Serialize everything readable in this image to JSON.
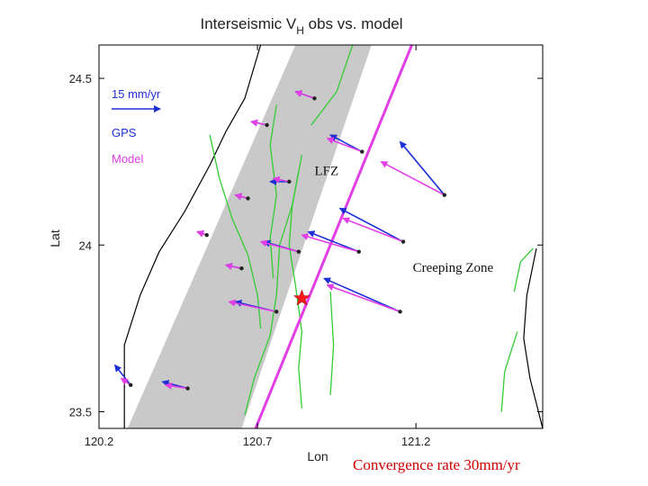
{
  "chart_data": {
    "type": "scatter",
    "title": "Interseismic V",
    "title_subscript": "H",
    "title_suffix": " obs vs. model",
    "xlabel": "Lon",
    "ylabel": "Lat",
    "xlim": [
      120.2,
      121.6
    ],
    "ylim": [
      23.45,
      24.6
    ],
    "xticks": [
      {
        "value": 120.2,
        "label": "120.2"
      },
      {
        "value": 120.7,
        "label": "120.7"
      },
      {
        "value": 121.2,
        "label": "121.2"
      }
    ],
    "yticks": [
      {
        "value": 23.5,
        "label": "23.5"
      },
      {
        "value": 24.0,
        "label": "24"
      },
      {
        "value": 24.5,
        "label": "24.5"
      }
    ],
    "legend": {
      "placement": "top-left",
      "scale_label": "15 mm/yr",
      "gps_label": "GPS",
      "model_label": "Model"
    },
    "colors": {
      "gps": "#1f2fd6",
      "model": "#e23ee6",
      "fault": "#e23ee6",
      "band": "#c9c9c9",
      "faults_green": "#33cc33",
      "coast": "#000000",
      "epicenter": "#ff1a1a"
    },
    "annotations": [
      {
        "text": "LFZ",
        "x": 120.88,
        "y": 24.21
      },
      {
        "text": "Creeping Zone",
        "x": 121.19,
        "y": 23.92
      }
    ],
    "footer": "Convergence rate 30mm/yr",
    "epicenter": {
      "x": 120.84,
      "y": 23.84
    },
    "fault_line": [
      [
        120.69,
        23.44
      ],
      [
        121.2,
        24.63
      ]
    ],
    "band": [
      [
        120.29,
        23.45
      ],
      [
        120.65,
        23.45
      ],
      [
        121.06,
        24.6
      ],
      [
        120.82,
        24.6
      ]
    ],
    "stations": [
      {
        "x": 120.88,
        "y": 24.44,
        "gps": [
          -0.06,
          0.02
        ],
        "model": [
          -0.06,
          0.02
        ]
      },
      {
        "x": 120.73,
        "y": 24.36,
        "gps": [
          -0.05,
          0.01
        ],
        "model": [
          -0.05,
          0.01
        ]
      },
      {
        "x": 121.03,
        "y": 24.28,
        "gps": [
          -0.1,
          0.05
        ],
        "model": [
          -0.11,
          0.04
        ]
      },
      {
        "x": 121.29,
        "y": 24.15,
        "gps": [
          -0.14,
          0.16
        ],
        "model": [
          -0.2,
          0.1
        ]
      },
      {
        "x": 120.8,
        "y": 24.19,
        "gps": [
          -0.06,
          0.0
        ],
        "model": [
          -0.05,
          0.01
        ]
      },
      {
        "x": 120.67,
        "y": 24.14,
        "gps": [
          -0.04,
          0.01
        ],
        "model": [
          -0.04,
          0.01
        ]
      },
      {
        "x": 121.16,
        "y": 24.01,
        "gps": [
          -0.2,
          0.1
        ],
        "model": [
          -0.19,
          0.07
        ]
      },
      {
        "x": 121.02,
        "y": 23.98,
        "gps": [
          -0.16,
          0.06
        ],
        "model": [
          -0.18,
          0.05
        ]
      },
      {
        "x": 120.83,
        "y": 23.98,
        "gps": [
          -0.11,
          0.03
        ],
        "model": [
          -0.12,
          0.03
        ]
      },
      {
        "x": 120.54,
        "y": 24.03,
        "gps": [
          -0.03,
          0.01
        ],
        "model": [
          -0.03,
          0.01
        ]
      },
      {
        "x": 120.65,
        "y": 23.93,
        "gps": [
          -0.05,
          0.01
        ],
        "model": [
          -0.05,
          0.01
        ]
      },
      {
        "x": 121.15,
        "y": 23.8,
        "gps": [
          -0.24,
          0.1
        ],
        "model": [
          -0.23,
          0.08
        ]
      },
      {
        "x": 120.76,
        "y": 23.8,
        "gps": [
          -0.13,
          0.03
        ],
        "model": [
          -0.15,
          0.03
        ]
      },
      {
        "x": 120.48,
        "y": 23.57,
        "gps": [
          -0.08,
          0.02
        ],
        "model": [
          -0.07,
          0.01
        ]
      },
      {
        "x": 120.3,
        "y": 23.58,
        "gps": [
          -0.05,
          0.06
        ],
        "model": [
          -0.03,
          0.02
        ]
      }
    ],
    "coastline": [
      [
        120.28,
        23.45
      ],
      [
        120.28,
        23.7
      ],
      [
        120.33,
        23.85
      ],
      [
        120.39,
        23.98
      ],
      [
        120.47,
        24.1
      ],
      [
        120.55,
        24.24
      ],
      [
        120.6,
        24.34
      ],
      [
        120.66,
        24.44
      ],
      [
        120.71,
        24.6
      ]
    ],
    "east_coast": [
      [
        121.6,
        23.45
      ],
      [
        121.56,
        23.6
      ],
      [
        121.54,
        23.72
      ],
      [
        121.55,
        23.85
      ],
      [
        121.58,
        23.99
      ]
    ],
    "green_faults": [
      [
        [
          120.71,
          23.75
        ],
        [
          120.7,
          23.85
        ],
        [
          120.67,
          23.97
        ],
        [
          120.62,
          24.08
        ],
        [
          120.58,
          24.2
        ],
        [
          120.55,
          24.33
        ]
      ],
      [
        [
          120.66,
          23.49
        ],
        [
          120.69,
          23.6
        ],
        [
          120.74,
          23.73
        ],
        [
          120.76,
          23.85
        ],
        [
          120.77,
          24.0
        ],
        [
          120.81,
          24.12
        ],
        [
          120.83,
          24.22
        ]
      ],
      [
        [
          120.84,
          23.51
        ],
        [
          120.83,
          23.63
        ],
        [
          120.84,
          23.74
        ],
        [
          120.82,
          23.88
        ],
        [
          120.8,
          24.0
        ],
        [
          120.81,
          24.12
        ],
        [
          120.84,
          24.27
        ]
      ],
      [
        [
          120.75,
          23.9
        ],
        [
          120.74,
          24.02
        ],
        [
          120.76,
          24.15
        ],
        [
          120.74,
          24.3
        ],
        [
          120.76,
          24.42
        ]
      ],
      [
        [
          120.87,
          24.36
        ],
        [
          120.95,
          24.46
        ],
        [
          121.0,
          24.6
        ]
      ],
      [
        [
          120.93,
          23.55
        ],
        [
          120.94,
          23.7
        ],
        [
          120.93,
          23.86
        ]
      ],
      [
        [
          121.47,
          23.5
        ],
        [
          121.48,
          23.62
        ],
        [
          121.52,
          23.74
        ]
      ],
      [
        [
          121.51,
          23.86
        ],
        [
          121.53,
          23.95
        ],
        [
          121.57,
          23.99
        ]
      ]
    ]
  }
}
